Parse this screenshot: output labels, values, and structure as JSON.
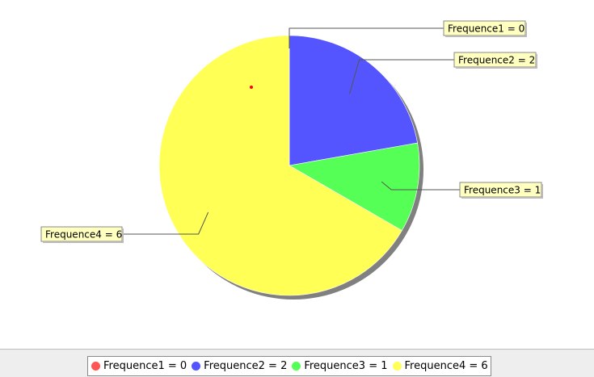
{
  "chart_data": {
    "type": "pie",
    "title": "",
    "slices": [
      {
        "label": "Frequence1 = 0",
        "value": 0,
        "color": "#ff5555"
      },
      {
        "label": "Frequence2 = 2",
        "value": 2,
        "color": "#5555ff"
      },
      {
        "label": "Frequence3 = 1",
        "value": 1,
        "color": "#55ff55"
      },
      {
        "label": "Frequence4 = 6",
        "value": 6,
        "color": "#ffff55"
      }
    ],
    "start_angle": "12 o'clock",
    "direction": "clockwise",
    "shadow": true,
    "legend_position": "bottom",
    "label_style": "callout boxes with leader lines"
  },
  "colors": {
    "label_box_bg": "#ffffc0",
    "label_box_border": "#888888",
    "leader_line": "#555555",
    "shadow": "#808080",
    "legend_bar_bg": "#eeeeee"
  }
}
